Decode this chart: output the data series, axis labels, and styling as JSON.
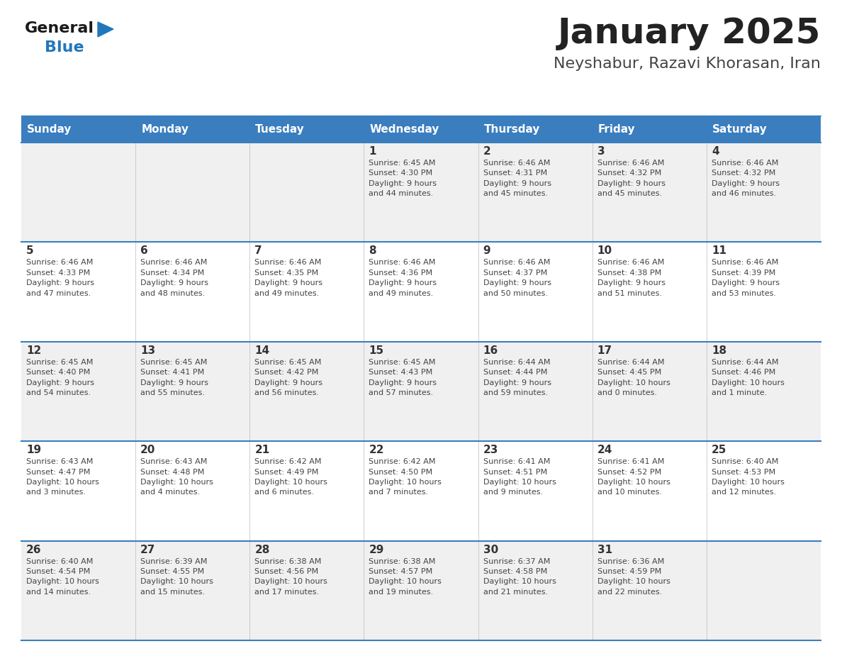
{
  "title": "January 2025",
  "subtitle": "Neyshabur, Razavi Khorasan, Iran",
  "days_of_week": [
    "Sunday",
    "Monday",
    "Tuesday",
    "Wednesday",
    "Thursday",
    "Friday",
    "Saturday"
  ],
  "header_bg": "#3A7EBF",
  "header_text": "#FFFFFF",
  "row_bg_odd": "#F0F0F0",
  "row_bg_even": "#FFFFFF",
  "row_divider": "#3A7EBF",
  "day_number_color": "#333333",
  "cell_text_color": "#444444",
  "title_color": "#222222",
  "subtitle_color": "#444444",
  "logo_general_color": "#1a1a1a",
  "logo_blue_color": "#2277BB",
  "fig_width": 11.88,
  "fig_height": 9.18,
  "dpi": 100,
  "weeks": [
    {
      "days": [
        {
          "date": "",
          "info": ""
        },
        {
          "date": "",
          "info": ""
        },
        {
          "date": "",
          "info": ""
        },
        {
          "date": "1",
          "info": "Sunrise: 6:45 AM\nSunset: 4:30 PM\nDaylight: 9 hours\nand 44 minutes."
        },
        {
          "date": "2",
          "info": "Sunrise: 6:46 AM\nSunset: 4:31 PM\nDaylight: 9 hours\nand 45 minutes."
        },
        {
          "date": "3",
          "info": "Sunrise: 6:46 AM\nSunset: 4:32 PM\nDaylight: 9 hours\nand 45 minutes."
        },
        {
          "date": "4",
          "info": "Sunrise: 6:46 AM\nSunset: 4:32 PM\nDaylight: 9 hours\nand 46 minutes."
        }
      ]
    },
    {
      "days": [
        {
          "date": "5",
          "info": "Sunrise: 6:46 AM\nSunset: 4:33 PM\nDaylight: 9 hours\nand 47 minutes."
        },
        {
          "date": "6",
          "info": "Sunrise: 6:46 AM\nSunset: 4:34 PM\nDaylight: 9 hours\nand 48 minutes."
        },
        {
          "date": "7",
          "info": "Sunrise: 6:46 AM\nSunset: 4:35 PM\nDaylight: 9 hours\nand 49 minutes."
        },
        {
          "date": "8",
          "info": "Sunrise: 6:46 AM\nSunset: 4:36 PM\nDaylight: 9 hours\nand 49 minutes."
        },
        {
          "date": "9",
          "info": "Sunrise: 6:46 AM\nSunset: 4:37 PM\nDaylight: 9 hours\nand 50 minutes."
        },
        {
          "date": "10",
          "info": "Sunrise: 6:46 AM\nSunset: 4:38 PM\nDaylight: 9 hours\nand 51 minutes."
        },
        {
          "date": "11",
          "info": "Sunrise: 6:46 AM\nSunset: 4:39 PM\nDaylight: 9 hours\nand 53 minutes."
        }
      ]
    },
    {
      "days": [
        {
          "date": "12",
          "info": "Sunrise: 6:45 AM\nSunset: 4:40 PM\nDaylight: 9 hours\nand 54 minutes."
        },
        {
          "date": "13",
          "info": "Sunrise: 6:45 AM\nSunset: 4:41 PM\nDaylight: 9 hours\nand 55 minutes."
        },
        {
          "date": "14",
          "info": "Sunrise: 6:45 AM\nSunset: 4:42 PM\nDaylight: 9 hours\nand 56 minutes."
        },
        {
          "date": "15",
          "info": "Sunrise: 6:45 AM\nSunset: 4:43 PM\nDaylight: 9 hours\nand 57 minutes."
        },
        {
          "date": "16",
          "info": "Sunrise: 6:44 AM\nSunset: 4:44 PM\nDaylight: 9 hours\nand 59 minutes."
        },
        {
          "date": "17",
          "info": "Sunrise: 6:44 AM\nSunset: 4:45 PM\nDaylight: 10 hours\nand 0 minutes."
        },
        {
          "date": "18",
          "info": "Sunrise: 6:44 AM\nSunset: 4:46 PM\nDaylight: 10 hours\nand 1 minute."
        }
      ]
    },
    {
      "days": [
        {
          "date": "19",
          "info": "Sunrise: 6:43 AM\nSunset: 4:47 PM\nDaylight: 10 hours\nand 3 minutes."
        },
        {
          "date": "20",
          "info": "Sunrise: 6:43 AM\nSunset: 4:48 PM\nDaylight: 10 hours\nand 4 minutes."
        },
        {
          "date": "21",
          "info": "Sunrise: 6:42 AM\nSunset: 4:49 PM\nDaylight: 10 hours\nand 6 minutes."
        },
        {
          "date": "22",
          "info": "Sunrise: 6:42 AM\nSunset: 4:50 PM\nDaylight: 10 hours\nand 7 minutes."
        },
        {
          "date": "23",
          "info": "Sunrise: 6:41 AM\nSunset: 4:51 PM\nDaylight: 10 hours\nand 9 minutes."
        },
        {
          "date": "24",
          "info": "Sunrise: 6:41 AM\nSunset: 4:52 PM\nDaylight: 10 hours\nand 10 minutes."
        },
        {
          "date": "25",
          "info": "Sunrise: 6:40 AM\nSunset: 4:53 PM\nDaylight: 10 hours\nand 12 minutes."
        }
      ]
    },
    {
      "days": [
        {
          "date": "26",
          "info": "Sunrise: 6:40 AM\nSunset: 4:54 PM\nDaylight: 10 hours\nand 14 minutes."
        },
        {
          "date": "27",
          "info": "Sunrise: 6:39 AM\nSunset: 4:55 PM\nDaylight: 10 hours\nand 15 minutes."
        },
        {
          "date": "28",
          "info": "Sunrise: 6:38 AM\nSunset: 4:56 PM\nDaylight: 10 hours\nand 17 minutes."
        },
        {
          "date": "29",
          "info": "Sunrise: 6:38 AM\nSunset: 4:57 PM\nDaylight: 10 hours\nand 19 minutes."
        },
        {
          "date": "30",
          "info": "Sunrise: 6:37 AM\nSunset: 4:58 PM\nDaylight: 10 hours\nand 21 minutes."
        },
        {
          "date": "31",
          "info": "Sunrise: 6:36 AM\nSunset: 4:59 PM\nDaylight: 10 hours\nand 22 minutes."
        },
        {
          "date": "",
          "info": ""
        }
      ]
    }
  ]
}
